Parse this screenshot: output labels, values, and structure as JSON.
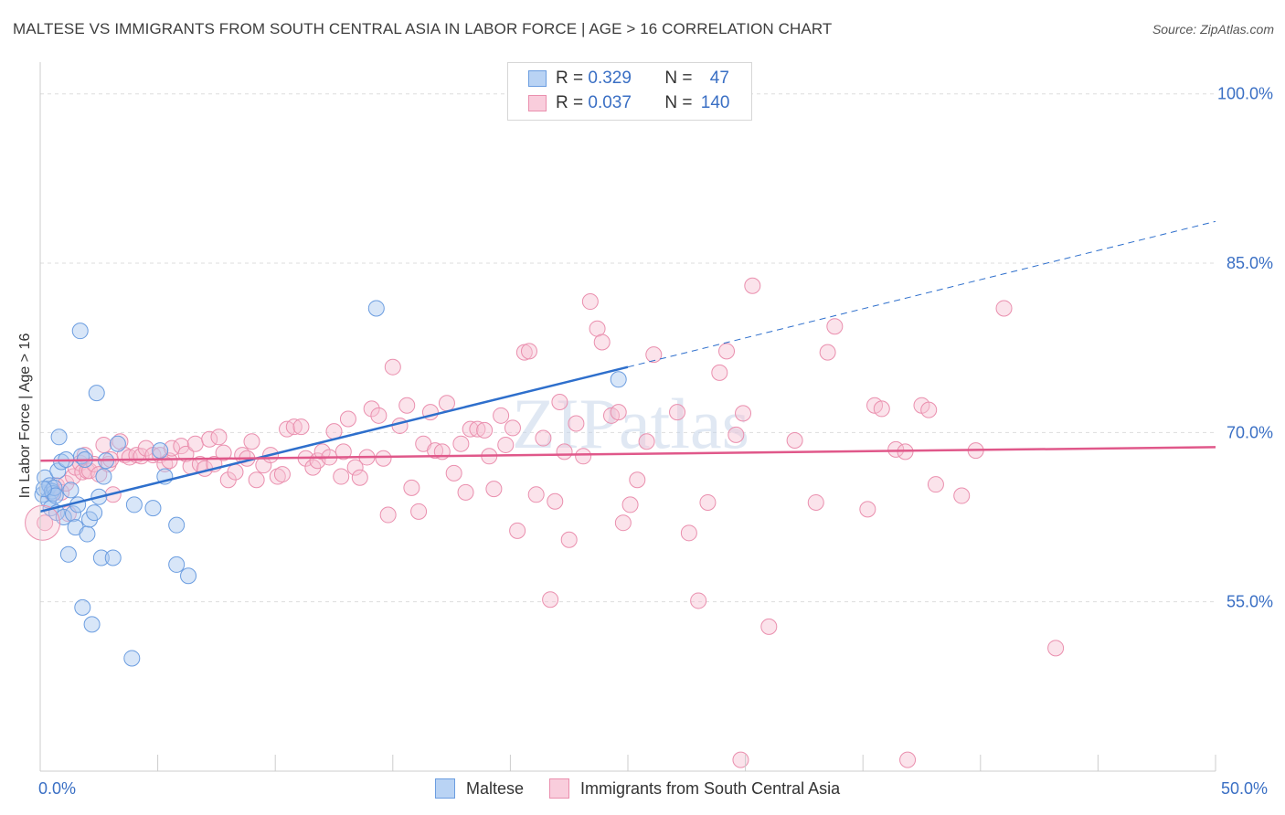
{
  "title": "MALTESE VS IMMIGRANTS FROM SOUTH CENTRAL ASIA IN LABOR FORCE | AGE > 16 CORRELATION CHART",
  "source": "Source: ZipAtlas.com",
  "watermark": "ZIPatlas",
  "legend": {
    "rows": [
      {
        "r_label": "R =",
        "r_value": "0.329",
        "n_label": "N =",
        "n_value": "47"
      },
      {
        "r_label": "R =",
        "r_value": "0.037",
        "n_label": "N =",
        "n_value": "140"
      }
    ]
  },
  "bottom_legend": [
    "Maltese",
    "Immigrants from South Central Asia"
  ],
  "colors": {
    "blue_fill": "#a9c8f0",
    "blue_stroke": "#6b9de0",
    "blue_line": "#2e6fcc",
    "pink_fill": "#f7c0d2",
    "pink_stroke": "#ea8fae",
    "pink_line": "#e0588a",
    "grid": "#dddddd",
    "axis_text": "#3a6fc4"
  },
  "chart_data": {
    "type": "scatter",
    "title": "MALTESE VS IMMIGRANTS FROM SOUTH CENTRAL ASIA IN LABOR FORCE | AGE > 16 CORRELATION CHART",
    "xlabel": "",
    "ylabel": "In Labor Force | Age > 16",
    "xlim": [
      0,
      50
    ],
    "ylim": [
      40,
      102
    ],
    "x_tick_labels": [
      "0.0%",
      "50.0%"
    ],
    "y_ticks": [
      55,
      70,
      85,
      100
    ],
    "y_tick_labels": [
      "55.0%",
      "70.0%",
      "85.0%",
      "100.0%"
    ],
    "series": [
      {
        "name": "Maltese",
        "R": 0.329,
        "N": 47,
        "trend": {
          "x0": 0,
          "y0": 63.0,
          "x1": 25,
          "y1": 75.8,
          "dash_x1": 50,
          "dash_y1": 88.7
        },
        "points": [
          [
            0.1,
            64.5
          ],
          [
            0.2,
            66.0
          ],
          [
            0.3,
            65.0
          ],
          [
            0.35,
            64.0
          ],
          [
            0.4,
            65.3
          ],
          [
            0.45,
            63.3
          ],
          [
            0.5,
            64.8
          ],
          [
            0.55,
            64.6
          ],
          [
            0.6,
            65.1
          ],
          [
            0.65,
            64.4
          ],
          [
            0.7,
            62.9
          ],
          [
            0.75,
            66.6
          ],
          [
            0.8,
            69.6
          ],
          [
            0.9,
            67.4
          ],
          [
            1.0,
            62.5
          ],
          [
            1.1,
            67.6
          ],
          [
            1.2,
            59.2
          ],
          [
            1.3,
            64.9
          ],
          [
            1.4,
            62.8
          ],
          [
            1.5,
            61.6
          ],
          [
            1.6,
            63.6
          ],
          [
            1.7,
            79.0
          ],
          [
            1.75,
            67.9
          ],
          [
            1.8,
            54.5
          ],
          [
            1.9,
            67.6
          ],
          [
            2.0,
            61.0
          ],
          [
            2.1,
            62.3
          ],
          [
            2.2,
            53.0
          ],
          [
            2.3,
            62.9
          ],
          [
            2.4,
            73.5
          ],
          [
            2.5,
            64.3
          ],
          [
            2.6,
            58.9
          ],
          [
            2.7,
            66.1
          ],
          [
            2.8,
            67.5
          ],
          [
            3.1,
            58.9
          ],
          [
            3.3,
            69.0
          ],
          [
            3.9,
            50.0
          ],
          [
            4.0,
            63.6
          ],
          [
            4.8,
            63.3
          ],
          [
            5.1,
            68.4
          ],
          [
            5.3,
            66.1
          ],
          [
            5.8,
            61.8
          ],
          [
            5.8,
            58.3
          ],
          [
            6.3,
            57.3
          ],
          [
            14.3,
            81.0
          ],
          [
            24.6,
            74.7
          ],
          [
            0.15,
            65.0
          ]
        ]
      },
      {
        "name": "Immigrants from South Central Asia",
        "R": 0.037,
        "N": 140,
        "trend": {
          "x0": 0,
          "y0": 67.5,
          "x1": 50,
          "y1": 68.7
        },
        "points": [
          [
            0.2,
            62.0
          ],
          [
            0.5,
            64.6
          ],
          [
            0.7,
            65.3
          ],
          [
            0.9,
            64.7
          ],
          [
            1.1,
            65.5
          ],
          [
            1.2,
            62.8
          ],
          [
            1.4,
            66.1
          ],
          [
            1.5,
            66.9
          ],
          [
            1.7,
            67.3
          ],
          [
            1.8,
            66.5
          ],
          [
            1.9,
            68.0
          ],
          [
            2.0,
            66.6
          ],
          [
            2.1,
            66.6
          ],
          [
            2.3,
            67.2
          ],
          [
            2.5,
            66.3
          ],
          [
            2.7,
            68.9
          ],
          [
            2.9,
            67.2
          ],
          [
            3.0,
            67.6
          ],
          [
            3.1,
            64.5
          ],
          [
            3.4,
            69.2
          ],
          [
            3.6,
            68.0
          ],
          [
            3.8,
            67.8
          ],
          [
            4.1,
            68.0
          ],
          [
            4.3,
            67.9
          ],
          [
            4.5,
            68.6
          ],
          [
            4.8,
            68.0
          ],
          [
            5.1,
            68.0
          ],
          [
            5.3,
            67.2
          ],
          [
            5.5,
            67.5
          ],
          [
            5.6,
            68.6
          ],
          [
            6.0,
            68.8
          ],
          [
            6.2,
            68.1
          ],
          [
            6.4,
            67.0
          ],
          [
            6.6,
            69.0
          ],
          [
            6.8,
            67.2
          ],
          [
            7.0,
            66.8
          ],
          [
            7.2,
            69.4
          ],
          [
            7.4,
            67.2
          ],
          [
            7.6,
            69.6
          ],
          [
            7.8,
            68.2
          ],
          [
            8.0,
            65.8
          ],
          [
            8.3,
            66.5
          ],
          [
            8.6,
            68.0
          ],
          [
            8.8,
            67.7
          ],
          [
            9.0,
            69.2
          ],
          [
            9.2,
            65.8
          ],
          [
            9.5,
            67.1
          ],
          [
            9.8,
            68.0
          ],
          [
            10.1,
            66.1
          ],
          [
            10.3,
            66.3
          ],
          [
            10.5,
            70.3
          ],
          [
            10.8,
            70.5
          ],
          [
            11.1,
            70.5
          ],
          [
            11.3,
            67.7
          ],
          [
            11.6,
            66.9
          ],
          [
            11.8,
            67.5
          ],
          [
            12.0,
            68.3
          ],
          [
            12.3,
            67.8
          ],
          [
            12.5,
            70.1
          ],
          [
            12.8,
            66.1
          ],
          [
            12.9,
            68.3
          ],
          [
            13.1,
            71.2
          ],
          [
            13.4,
            66.9
          ],
          [
            13.6,
            66.0
          ],
          [
            13.9,
            67.8
          ],
          [
            14.1,
            72.1
          ],
          [
            14.4,
            71.5
          ],
          [
            14.6,
            67.7
          ],
          [
            14.8,
            62.7
          ],
          [
            15.0,
            75.8
          ],
          [
            15.3,
            70.6
          ],
          [
            15.6,
            72.4
          ],
          [
            15.8,
            65.1
          ],
          [
            16.1,
            63.0
          ],
          [
            16.3,
            69.0
          ],
          [
            16.6,
            71.8
          ],
          [
            16.8,
            68.4
          ],
          [
            17.1,
            68.3
          ],
          [
            17.3,
            72.6
          ],
          [
            17.6,
            66.4
          ],
          [
            17.9,
            69.0
          ],
          [
            18.1,
            64.7
          ],
          [
            18.3,
            70.3
          ],
          [
            18.6,
            70.3
          ],
          [
            18.9,
            70.2
          ],
          [
            19.1,
            67.9
          ],
          [
            19.3,
            65.0
          ],
          [
            19.6,
            71.5
          ],
          [
            19.8,
            68.9
          ],
          [
            20.1,
            70.4
          ],
          [
            20.3,
            61.3
          ],
          [
            20.6,
            77.1
          ],
          [
            20.8,
            77.2
          ],
          [
            21.1,
            64.5
          ],
          [
            21.4,
            69.5
          ],
          [
            21.7,
            55.2
          ],
          [
            21.9,
            63.9
          ],
          [
            22.1,
            72.7
          ],
          [
            22.3,
            68.3
          ],
          [
            22.5,
            60.5
          ],
          [
            22.8,
            70.8
          ],
          [
            23.1,
            67.9
          ],
          [
            23.4,
            81.6
          ],
          [
            23.7,
            79.2
          ],
          [
            23.9,
            78.0
          ],
          [
            24.3,
            71.5
          ],
          [
            24.6,
            71.8
          ],
          [
            24.8,
            62.0
          ],
          [
            25.1,
            63.6
          ],
          [
            25.4,
            65.8
          ],
          [
            25.8,
            69.2
          ],
          [
            26.1,
            76.9
          ],
          [
            27.1,
            71.8
          ],
          [
            27.6,
            61.1
          ],
          [
            28.0,
            55.1
          ],
          [
            28.4,
            63.8
          ],
          [
            28.9,
            75.3
          ],
          [
            29.2,
            77.2
          ],
          [
            29.6,
            69.8
          ],
          [
            29.9,
            71.7
          ],
          [
            30.3,
            83.0
          ],
          [
            31.0,
            52.8
          ],
          [
            32.1,
            69.3
          ],
          [
            33.0,
            63.8
          ],
          [
            33.5,
            77.1
          ],
          [
            33.8,
            79.4
          ],
          [
            35.2,
            63.2
          ],
          [
            35.5,
            72.4
          ],
          [
            35.8,
            72.1
          ],
          [
            36.4,
            68.5
          ],
          [
            36.8,
            68.3
          ],
          [
            37.5,
            72.4
          ],
          [
            37.8,
            72.0
          ],
          [
            38.1,
            65.4
          ],
          [
            39.2,
            64.4
          ],
          [
            39.8,
            68.4
          ],
          [
            41.0,
            81.0
          ],
          [
            43.2,
            50.9
          ],
          [
            29.8,
            41.0
          ],
          [
            36.9,
            41.0
          ]
        ]
      }
    ]
  }
}
